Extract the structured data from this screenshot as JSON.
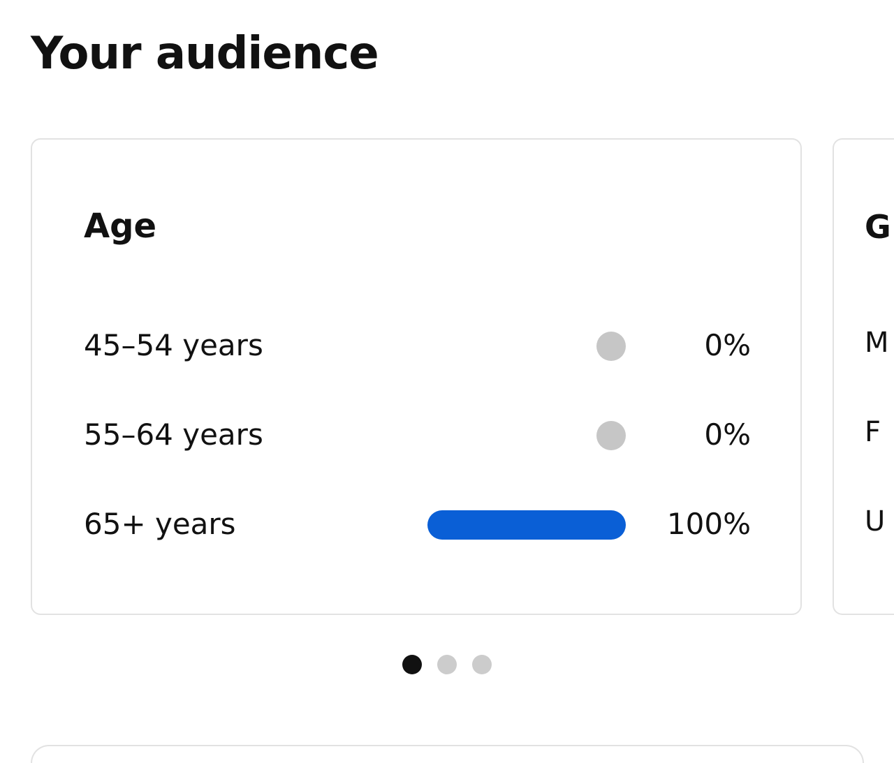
{
  "page": {
    "title": "Your audience"
  },
  "age_card": {
    "title": "Age",
    "rows": [
      {
        "label": "45–54 years",
        "percent_text": "0%",
        "value": 0
      },
      {
        "label": "55–64 years",
        "percent_text": "0%",
        "value": 0
      },
      {
        "label": "65+ years",
        "percent_text": "100%",
        "value": 100
      }
    ]
  },
  "next_card": {
    "title_partial": "G",
    "rows_partial": [
      "M",
      "F",
      "U"
    ]
  },
  "carousel": {
    "page_count": 3,
    "active_index": 0
  },
  "colors": {
    "bar_fill": "#0a5fd6",
    "bar_empty": "#c6c6c6",
    "dot_active": "#111111",
    "dot_inactive": "#cccccc"
  }
}
